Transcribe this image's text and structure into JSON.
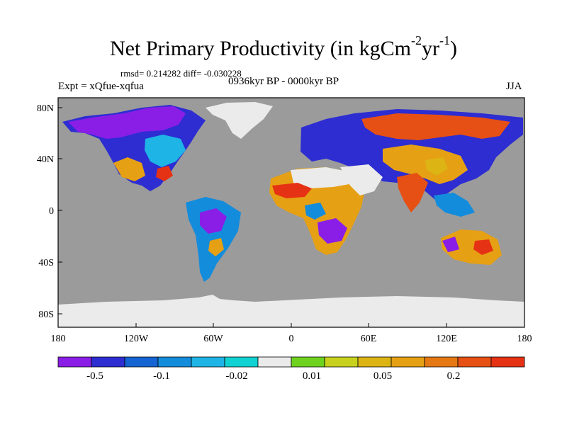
{
  "title": {
    "main": "Net Primary Productivity (in kgCm",
    "sup1": "-2",
    "mid": "yr",
    "sup2": "-1",
    "end": ")"
  },
  "stats_line": "rmsd= 0.214282 diff= -0.030228",
  "period": "0936kyr BP - 0000kyr BP",
  "experiment": "Expt = xQfue-xqfua",
  "season": "JJA",
  "axes": {
    "lat_ticks": [
      "80N",
      "40N",
      "0",
      "40S",
      "80S"
    ],
    "lon_ticks": [
      "180",
      "120W",
      "60W",
      "0",
      "60E",
      "120E",
      "180"
    ]
  },
  "colors": {
    "ocean": "#9b9b9b",
    "ice": "#ebebeb",
    "purple": "#8a1ee6",
    "dark_blue": "#2d2dd2",
    "blue": "#1464d2",
    "sky": "#148cdc",
    "light_sky": "#1eb4e6",
    "cyan": "#10d2d2",
    "white": "#ebebeb",
    "green": "#6ed21e",
    "lime": "#c8d21e",
    "yellow": "#dcb414",
    "orange": "#e6a014",
    "dark_orange": "#e67814",
    "red_orange": "#e65014",
    "red": "#e63214"
  },
  "colorbar": {
    "colors": [
      "#8a1ee6",
      "#2d2dd2",
      "#1464d2",
      "#148cdc",
      "#1eb4e6",
      "#10d2d2",
      "#ebebeb",
      "#6ed21e",
      "#c8d21e",
      "#dcb414",
      "#e6a014",
      "#e67814",
      "#e65014",
      "#e63214"
    ],
    "labels": [
      "-0.5",
      "-0.1",
      "-0.02",
      "0.01",
      "0.05",
      "0.2"
    ]
  }
}
